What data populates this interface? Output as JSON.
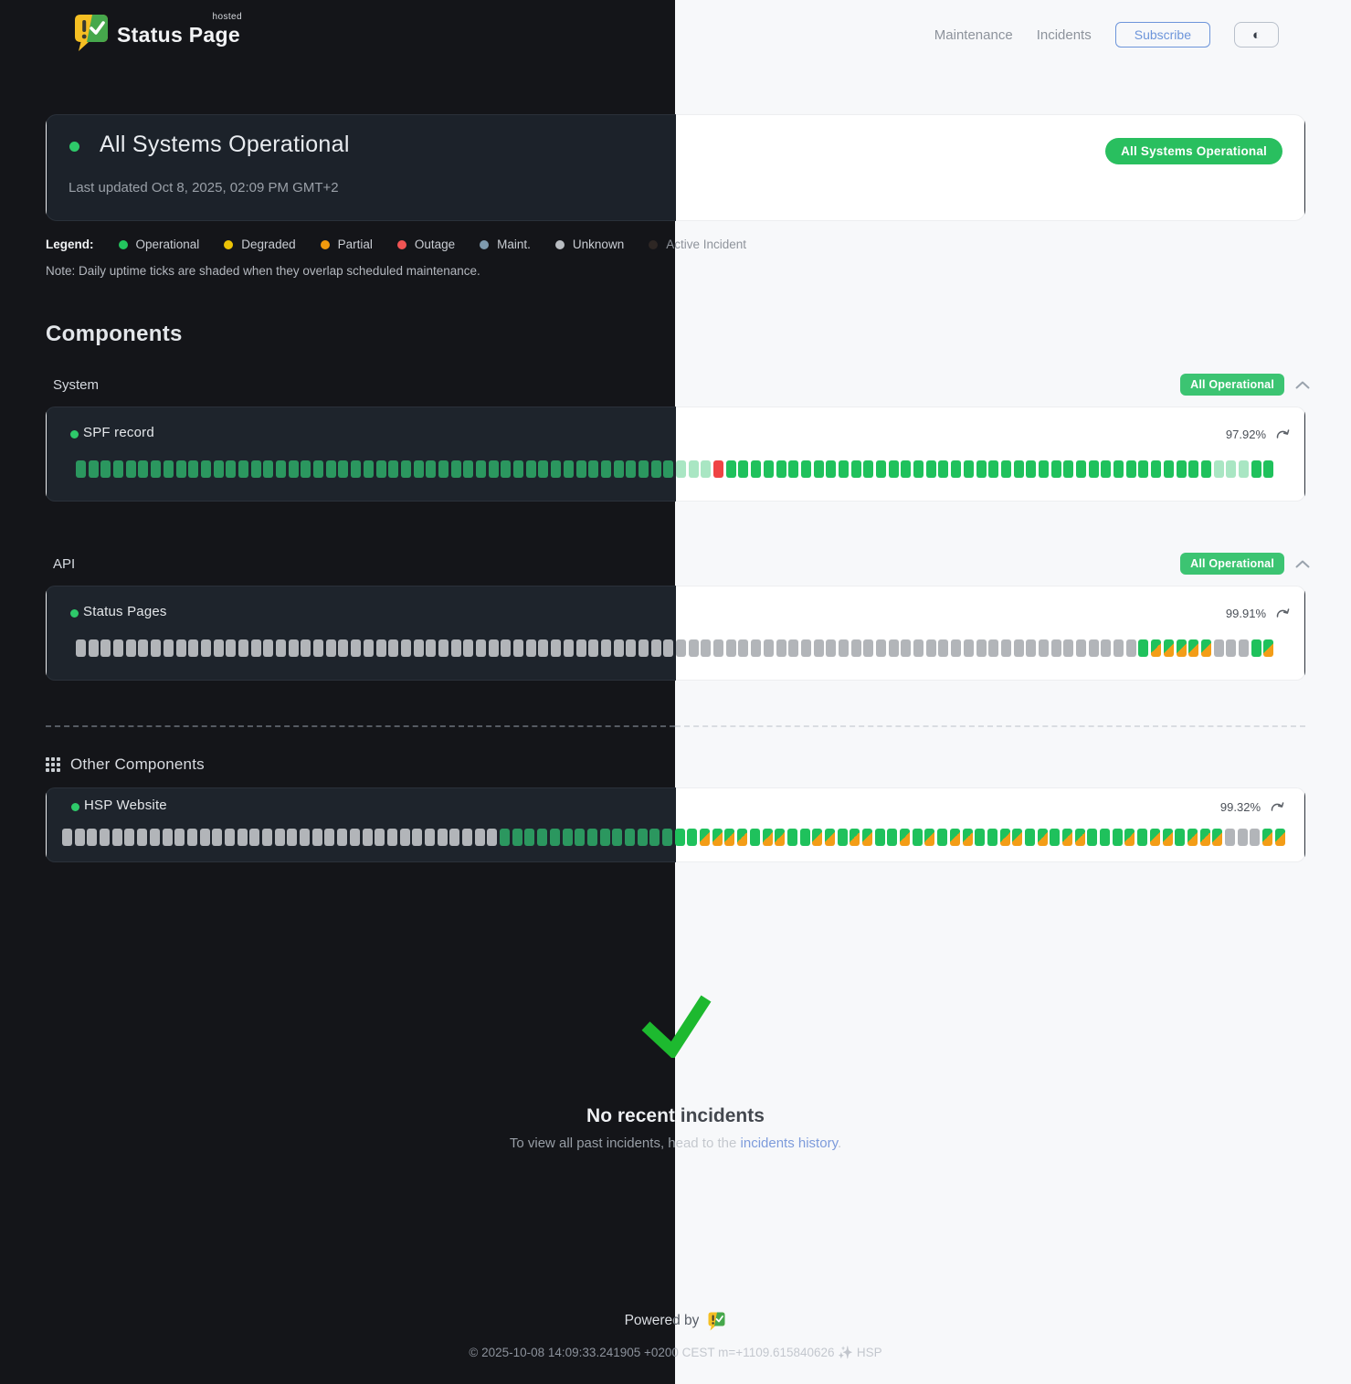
{
  "brand": {
    "name": "Status Page",
    "hosted": "hosted"
  },
  "nav": {
    "maintenance": "Maintenance",
    "incidents": "Incidents",
    "subscribe": "Subscribe",
    "theme_toggle_icon": "◐"
  },
  "banner": {
    "title": "All Systems Operational",
    "updated": "Last updated Oct 8, 2025, 02:09 PM GMT+2",
    "badge": "All Systems Operational"
  },
  "legend": {
    "label": "Legend:",
    "items": [
      {
        "name": "Operational",
        "color": "#23c55e"
      },
      {
        "name": "Degraded",
        "color": "#ecc306"
      },
      {
        "name": "Partial",
        "color": "#f29a0d"
      },
      {
        "name": "Outage",
        "color": "#f05454"
      },
      {
        "name": "Maint.",
        "color": "#7e9aae"
      },
      {
        "name": "Unknown",
        "color": "#b9bdc2"
      },
      {
        "name": "Active Incident",
        "color": "#2e2724"
      }
    ]
  },
  "note": "Note: Daily uptime ticks are shaded when they overlap scheduled maintenance.",
  "components": {
    "heading": "Components",
    "groups": [
      {
        "name": "System",
        "badge": "All Operational",
        "items": [
          {
            "name": "SPF record",
            "uptime": "97.92%",
            "ticks": "oooooooooooooooooooooooooooooooooooooooooooooooosssrooooooooooooooooooooooooooooooooooooooosssoo"
          }
        ]
      },
      {
        "name": "API",
        "badge": "All Operational",
        "items": [
          {
            "name": "Status Pages",
            "uptime": "99.91%",
            "ticks": "uuuuuuuuuuuuuuuuuuuuuuuuuuuuuuuuuuuuuuuuuuuuuuuuuuuuuuuuuuuuuuuuuuuuuuuuuuuuuuuuuuuuuommmmmuuuom"
          }
        ]
      }
    ],
    "other": {
      "heading": "Other Components",
      "items": [
        {
          "name": "HSP Website",
          "uptime": "99.32%",
          "ticks": "uuuuuuuuuuuuuuuuuuuuuuuuuuuuuuuuuuuoooooooooooooooommmmommoommommoomomommoommomommooomommommmuuumm"
        }
      ]
    }
  },
  "incidents_section": {
    "title": "No recent incidents",
    "subtitle_prefix": "To view all past incidents, head to the ",
    "link": "incidents history",
    "suffix": "."
  },
  "footer": {
    "powered": "Powered by",
    "copyright": "© 2025-10-08 14:09:33.241905 +0200 CEST m=+1109.615840626 ✨ HSP"
  },
  "colors": {
    "accent_green": "#2ec96a",
    "badge_green": "#29bf5f",
    "group_badge_green": "#3cc472",
    "tick_green_light": "#1fc15c",
    "tick_green_dark": "#2b975f",
    "tick_pale": "#a9e6c3",
    "tick_gray": "#b2b5b9",
    "tick_red": "#ef4444",
    "tick_orange": "#f39d17",
    "link_blue": "#7d9bdb",
    "subscribe_blue": "#6d95da",
    "check_green": "#1db92f"
  }
}
